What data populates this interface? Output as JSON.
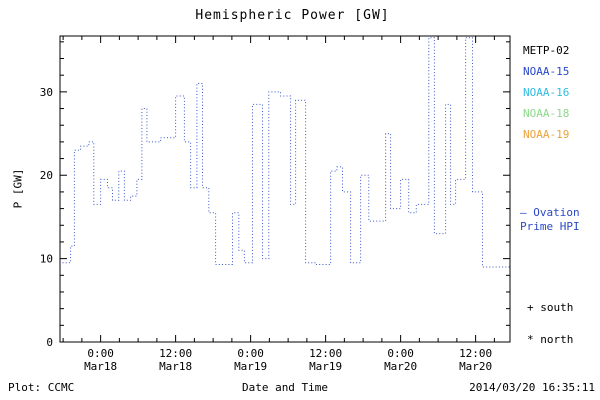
{
  "chart_data": {
    "type": "line",
    "subtype": "step-dotted",
    "title": "Hemispheric Power [GW]",
    "xlabel": "Date and Time",
    "ylabel": "P [GW]",
    "xlim": [
      0,
      72
    ],
    "ylim": [
      0,
      36.7
    ],
    "yticks": [
      0,
      10,
      20,
      30
    ],
    "x_unit": "hours since 2014-03-17 ~17:30 UT",
    "xticks": [
      {
        "t": 6.5,
        "time": "0:00",
        "date": "Mar18"
      },
      {
        "t": 18.5,
        "time": "12:00",
        "date": "Mar18"
      },
      {
        "t": 30.5,
        "time": "0:00",
        "date": "Mar19"
      },
      {
        "t": 42.5,
        "time": "12:00",
        "date": "Mar19"
      },
      {
        "t": 54.5,
        "time": "0:00",
        "date": "Mar20"
      },
      {
        "t": 66.5,
        "time": "12:00",
        "date": "Mar20"
      }
    ],
    "line_color": "#3a56c8",
    "grid": false,
    "legend_position": "right-outside",
    "series": [
      {
        "name": "Ovation Prime HPI",
        "steps": [
          [
            0.4,
            9.5
          ],
          [
            1.7,
            11.5
          ],
          [
            2.3,
            23
          ],
          [
            3.3,
            23.5
          ],
          [
            4.6,
            24
          ],
          [
            5.4,
            16.5
          ],
          [
            6.5,
            19.5
          ],
          [
            7.6,
            18.5
          ],
          [
            8.4,
            17
          ],
          [
            9.4,
            20.5
          ],
          [
            10.3,
            17
          ],
          [
            11.3,
            17.5
          ],
          [
            12.3,
            19.5
          ],
          [
            13.1,
            28
          ],
          [
            13.9,
            24
          ],
          [
            16.1,
            24.5
          ],
          [
            18.5,
            29.5
          ],
          [
            19.9,
            24
          ],
          [
            20.9,
            18.5
          ],
          [
            21.9,
            31
          ],
          [
            22.8,
            18.5
          ],
          [
            23.8,
            15.5
          ],
          [
            24.9,
            9.3
          ],
          [
            27.6,
            15.5
          ],
          [
            28.6,
            11
          ],
          [
            29.5,
            9.5
          ],
          [
            30.8,
            28.5
          ],
          [
            32.4,
            10
          ],
          [
            33.4,
            30
          ],
          [
            35.3,
            29.5
          ],
          [
            36.9,
            16.5
          ],
          [
            37.7,
            29
          ],
          [
            39.3,
            9.5
          ],
          [
            40.9,
            9.3
          ],
          [
            43.3,
            20.5
          ],
          [
            44.3,
            21
          ],
          [
            45.2,
            18
          ],
          [
            46.5,
            9.5
          ],
          [
            48.1,
            20
          ],
          [
            49.4,
            14.5
          ],
          [
            52.1,
            25
          ],
          [
            52.9,
            16
          ],
          [
            54.5,
            19.5
          ],
          [
            55.8,
            15.5
          ],
          [
            57.0,
            16.5
          ],
          [
            59.0,
            36.5
          ],
          [
            59.9,
            13
          ],
          [
            61.7,
            28.5
          ],
          [
            62.5,
            16.5
          ],
          [
            63.3,
            19.5
          ],
          [
            64.9,
            36.5
          ],
          [
            66.0,
            18
          ],
          [
            67.6,
            9
          ],
          [
            72,
            9
          ]
        ]
      }
    ],
    "legend": [
      {
        "label": "METP-02",
        "color": "#000000"
      },
      {
        "label": "NOAA-15",
        "color": "#2a48c8"
      },
      {
        "label": "NOAA-16",
        "color": "#30bce0"
      },
      {
        "label": "NOAA-18",
        "color": "#8cd98c"
      },
      {
        "label": "NOAA-19",
        "color": "#eea23a"
      }
    ],
    "right_annotations": {
      "ovation": {
        "lines": [
          "— Ovation",
          "Prime HPI"
        ],
        "color": "#2a48c8"
      },
      "south": {
        "symbol": "+",
        "label": "south",
        "color": "#000000"
      },
      "north": {
        "symbol": "*",
        "label": "north",
        "color": "#000000"
      }
    }
  },
  "footer": {
    "left": "Plot: CCMC",
    "right": "2014/03/20 16:35:11"
  }
}
